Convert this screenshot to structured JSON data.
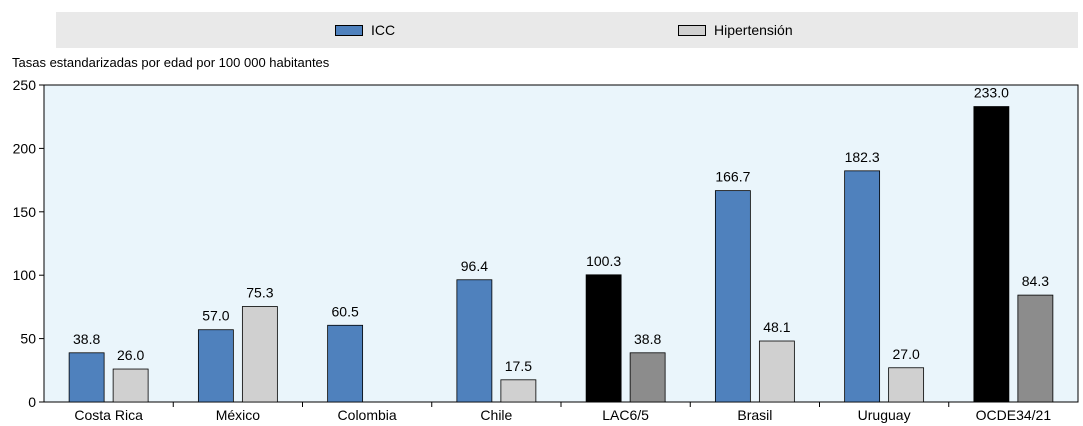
{
  "chart_data": {
    "type": "bar",
    "ylabel": "Tasas estandarizadas por edad por 100 000 habitantes",
    "ylim": [
      0,
      250
    ],
    "yticks": [
      0,
      50,
      100,
      150,
      200,
      250
    ],
    "grid": false,
    "legend_position": "top",
    "categories": [
      "Costa Rica",
      "México",
      "Colombia",
      "Chile",
      "LAC6/5",
      "Brasil",
      "Uruguay",
      "OCDE34/21"
    ],
    "series": [
      {
        "name": "ICC",
        "values": [
          38.8,
          57.0,
          60.5,
          96.4,
          100.3,
          166.7,
          182.3,
          233.0
        ],
        "labels": [
          "38.8",
          "57.0",
          "60.5",
          "96.4",
          "100.3",
          "166.7",
          "182.3",
          "233.0"
        ]
      },
      {
        "name": "Hipertensión",
        "values": [
          26.0,
          75.3,
          null,
          17.5,
          38.8,
          48.1,
          27.0,
          84.3
        ],
        "labels": [
          "26.0",
          "75.3",
          "",
          "17.5",
          "38.8",
          "48.1",
          "27.0",
          "84.3"
        ]
      }
    ],
    "highlight_categories": [
      "LAC6/5",
      "OCDE34/21"
    ]
  },
  "colors": {
    "icc": "#4f81bd",
    "hipertension": "#d0d0d0",
    "icc_highlight": "#000000",
    "hipertension_highlight": "#8c8c8c",
    "plot_background": "#eaf5fb",
    "legend_background": "#e9e9e9"
  }
}
